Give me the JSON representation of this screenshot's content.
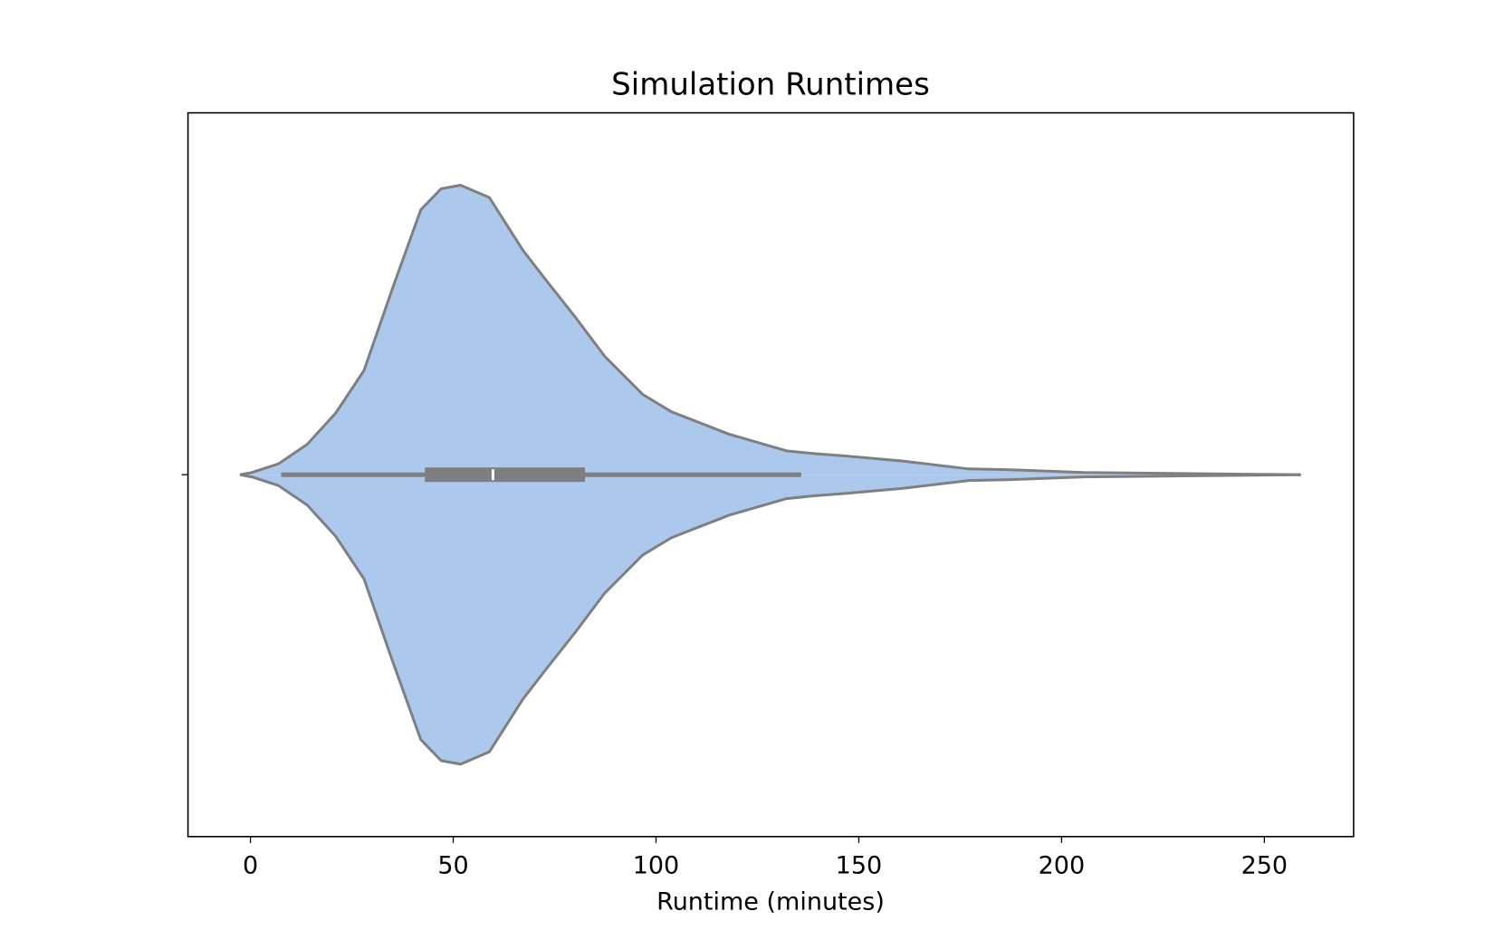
{
  "chart_data": {
    "type": "violin",
    "orientation": "horizontal",
    "title": "Simulation Runtimes",
    "xlabel": "Runtime (minutes)",
    "categories": [
      null
    ],
    "x": [
      -2.6,
      0.3,
      6.9,
      14,
      21,
      28,
      35,
      42,
      47,
      51.8,
      58.9,
      67.2,
      73,
      80.2,
      87.3,
      96.7,
      103.8,
      118,
      132.2,
      139.3,
      146.4,
      160.6,
      177.1,
      186.6,
      205.5,
      259
    ],
    "half_width": [
      0,
      0.003,
      0.015,
      0.042,
      0.085,
      0.144,
      0.257,
      0.366,
      0.395,
      0.4,
      0.383,
      0.31,
      0.268,
      0.217,
      0.164,
      0.111,
      0.087,
      0.056,
      0.033,
      0.029,
      0.026,
      0.019,
      0.008,
      0.007,
      0.003,
      0
    ],
    "box": {
      "whisker_low": 7.6,
      "q1": 43,
      "median": 59.8,
      "q3": 82.5,
      "whisker_high": 135.8
    },
    "color": "#abc9ec",
    "edge_color": "#7f7f7f",
    "xlim": [
      -15.4,
      272
    ],
    "ylim": [
      0.5,
      -0.5
    ],
    "xticks": [
      0,
      50,
      100,
      150,
      200,
      250
    ]
  }
}
